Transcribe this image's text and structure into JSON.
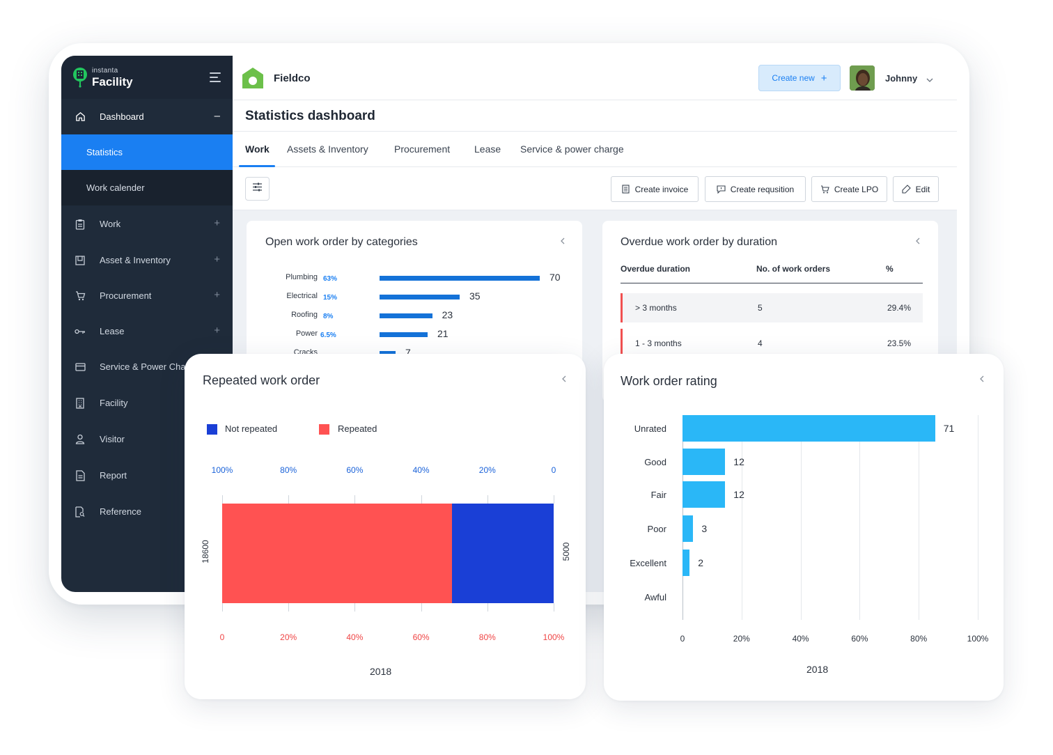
{
  "brand": {
    "small": "instanta",
    "big": "Facility"
  },
  "sidebar": {
    "dashboard": "Dashboard",
    "statistics": "Statistics",
    "work_calendar": "Work calender",
    "items": [
      {
        "label": "Work",
        "icon": "clipboard-icon"
      },
      {
        "label": "Asset & Inventory",
        "icon": "asset-icon"
      },
      {
        "label": "Procurement",
        "icon": "cart-icon"
      },
      {
        "label": "Lease",
        "icon": "key-icon"
      },
      {
        "label": "Service & Power Cha",
        "icon": "card-icon"
      },
      {
        "label": "Facility",
        "icon": "building-icon"
      },
      {
        "label": "Visitor",
        "icon": "user-icon"
      },
      {
        "label": "Report",
        "icon": "report-icon"
      },
      {
        "label": "Reference",
        "icon": "reference-icon"
      }
    ]
  },
  "header": {
    "org_name": "Fieldco",
    "create_new": "Create new",
    "user_name": "Johnny"
  },
  "page": {
    "title": "Statistics dashboard"
  },
  "tabs": [
    "Work",
    "Assets & Inventory",
    "Procurement",
    "Lease",
    "Service & power charge"
  ],
  "toolbar": {
    "create_invoice": "Create invoice",
    "create_requisition": "Create requsition",
    "create_lpo": "Create LPO",
    "edit": "Edit"
  },
  "open_work_order": {
    "title": "Open work order by categories",
    "rows": [
      {
        "label": "Plumbing",
        "pct": "63%",
        "value": 70
      },
      {
        "label": "Electrical",
        "pct": "15%",
        "value": 35
      },
      {
        "label": "Roofing",
        "pct": "8%",
        "value": 23
      },
      {
        "label": "Power",
        "pct": "6.5%",
        "value": 21
      },
      {
        "label": "Cracks",
        "pct": "",
        "value": 7
      }
    ]
  },
  "overdue": {
    "title": "Overdue work order by duration",
    "headers": [
      "Overdue duration",
      "No. of work orders",
      "%"
    ],
    "rows": [
      {
        "duration": "> 3 months",
        "count": "5",
        "pct": "29.4%"
      },
      {
        "duration": "1 - 3 months",
        "count": "4",
        "pct": "23.5%"
      }
    ]
  },
  "repeated": {
    "title": "Repeated work order",
    "legend": [
      "Not repeated",
      "Repeated"
    ],
    "top_ticks": [
      "100%",
      "80%",
      "60%",
      "40%",
      "20%",
      "0"
    ],
    "bottom_ticks": [
      "0",
      "20%",
      "40%",
      "60%",
      "80%",
      "100%"
    ],
    "left_value": "18600",
    "right_value": "5000",
    "year": "2018",
    "repeated_fraction": 0.694,
    "colors": {
      "not_repeated": "#1a3fd6",
      "repeated": "#ff5252"
    }
  },
  "rating": {
    "title": "Work order rating",
    "rows": [
      {
        "label": "Unrated",
        "value": 71
      },
      {
        "label": "Good",
        "value": 12
      },
      {
        "label": "Fair",
        "value": 12
      },
      {
        "label": "Poor",
        "value": 3
      },
      {
        "label": "Excellent",
        "value": 2
      },
      {
        "label": "Awful",
        "value": null
      }
    ],
    "x_ticks": [
      "0",
      "20%",
      "40%",
      "60%",
      "80%",
      "100%"
    ],
    "year": "2018",
    "bar_color": "#2ab7f7"
  },
  "chart_data": [
    {
      "type": "bar",
      "title": "Open work order by categories",
      "categories": [
        "Plumbing",
        "Electrical",
        "Roofing",
        "Power",
        "Cracks"
      ],
      "values": [
        70,
        35,
        23,
        21,
        7
      ]
    },
    {
      "type": "bar",
      "title": "Repeated work order",
      "categories": [
        "2018"
      ],
      "series": [
        {
          "name": "Repeated",
          "values": [
            18600
          ]
        },
        {
          "name": "Not repeated",
          "values": [
            5000
          ]
        }
      ]
    },
    {
      "type": "bar",
      "title": "Work order rating",
      "categories": [
        "Unrated",
        "Good",
        "Fair",
        "Poor",
        "Excellent",
        "Awful"
      ],
      "values": [
        71,
        12,
        12,
        3,
        2,
        null
      ],
      "xlabel": "2018"
    }
  ]
}
